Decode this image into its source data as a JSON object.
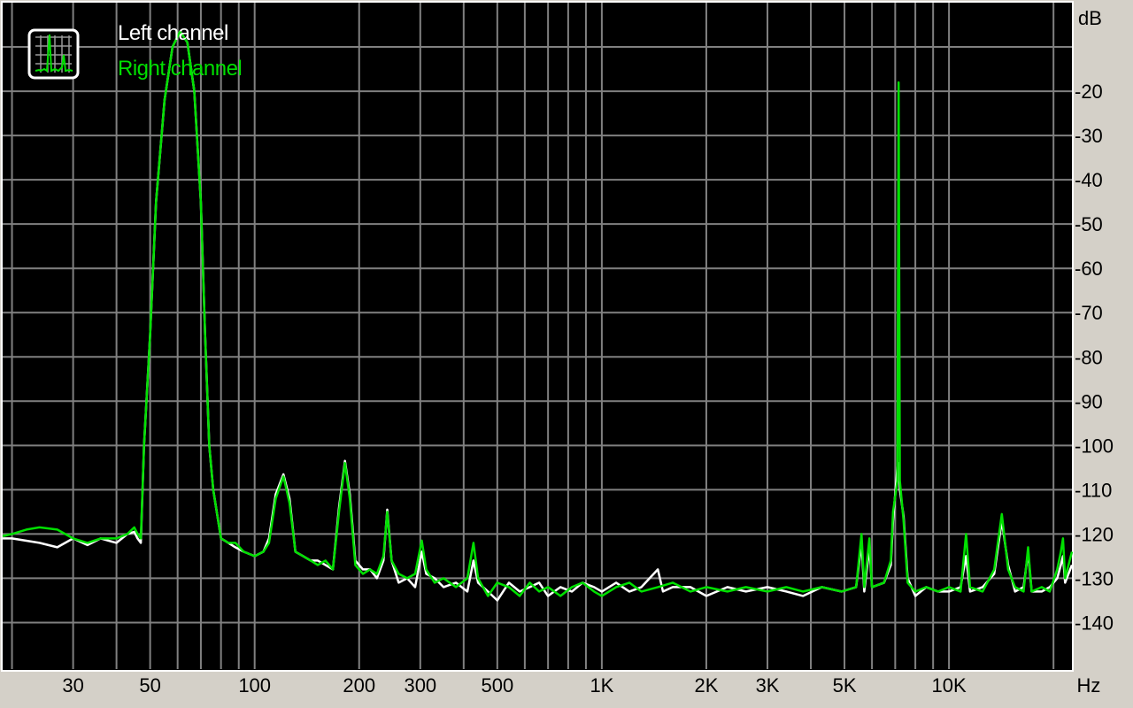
{
  "chart_data": {
    "type": "line",
    "xlabel": "Hz",
    "ylabel": "dB",
    "x_scale": "log",
    "xlim": [
      18.8,
      22600
    ],
    "ylim": [
      -150.5,
      0
    ],
    "grid": true,
    "legend_placement": "top-left",
    "x_ticks": [
      {
        "value": 30,
        "label": "30"
      },
      {
        "value": 50,
        "label": "50"
      },
      {
        "value": 100,
        "label": "100"
      },
      {
        "value": 200,
        "label": "200"
      },
      {
        "value": 300,
        "label": "300"
      },
      {
        "value": 500,
        "label": "500"
      },
      {
        "value": 1000,
        "label": "1K"
      },
      {
        "value": 2000,
        "label": "2K"
      },
      {
        "value": 3000,
        "label": "3K"
      },
      {
        "value": 5000,
        "label": "5K"
      },
      {
        "value": 10000,
        "label": "10K"
      }
    ],
    "y_ticks": [
      {
        "value": -20,
        "label": "-20"
      },
      {
        "value": -30,
        "label": "-30"
      },
      {
        "value": -40,
        "label": "-40"
      },
      {
        "value": -50,
        "label": "-50"
      },
      {
        "value": -60,
        "label": "-60"
      },
      {
        "value": -70,
        "label": "-70"
      },
      {
        "value": -80,
        "label": "-80"
      },
      {
        "value": -90,
        "label": "-90"
      },
      {
        "value": -100,
        "label": "-100"
      },
      {
        "value": -110,
        "label": "-110"
      },
      {
        "value": -120,
        "label": "-120"
      },
      {
        "value": -130,
        "label": "-130"
      },
      {
        "value": -140,
        "label": "-140"
      }
    ],
    "x_grid": [
      20,
      30,
      40,
      50,
      60,
      70,
      80,
      90,
      100,
      200,
      300,
      400,
      500,
      600,
      700,
      800,
      900,
      1000,
      2000,
      3000,
      4000,
      5000,
      6000,
      7000,
      8000,
      9000,
      10000,
      20000
    ],
    "y_grid": [
      -10,
      -20,
      -30,
      -40,
      -50,
      -60,
      -70,
      -80,
      -90,
      -100,
      -110,
      -120,
      -130,
      -140
    ],
    "series": [
      {
        "name": "Left channel",
        "color": "#ffffff",
        "points": [
          [
            18.8,
            -121
          ],
          [
            20,
            -121
          ],
          [
            24,
            -122
          ],
          [
            27,
            -123
          ],
          [
            30,
            -121
          ],
          [
            33,
            -122.5
          ],
          [
            36,
            -121
          ],
          [
            40,
            -122
          ],
          [
            43,
            -120
          ],
          [
            45,
            -119.5
          ],
          [
            46,
            -121
          ],
          [
            47,
            -122
          ],
          [
            48,
            -100
          ],
          [
            50,
            -75
          ],
          [
            52,
            -45
          ],
          [
            55,
            -22
          ],
          [
            58,
            -10
          ],
          [
            61,
            -6.5
          ],
          [
            64,
            -9
          ],
          [
            67,
            -20
          ],
          [
            70,
            -45
          ],
          [
            72,
            -75
          ],
          [
            74,
            -100
          ],
          [
            76,
            -110
          ],
          [
            80,
            -121
          ],
          [
            84,
            -122
          ],
          [
            88,
            -123
          ],
          [
            93,
            -124
          ],
          [
            100,
            -125
          ],
          [
            106,
            -124
          ],
          [
            110,
            -121
          ],
          [
            115,
            -111
          ],
          [
            121,
            -106.5
          ],
          [
            126,
            -112
          ],
          [
            131,
            -124
          ],
          [
            138,
            -125
          ],
          [
            145,
            -126
          ],
          [
            152,
            -126
          ],
          [
            160,
            -127
          ],
          [
            168,
            -128
          ],
          [
            175,
            -114
          ],
          [
            182,
            -103.5
          ],
          [
            188,
            -111
          ],
          [
            195,
            -126
          ],
          [
            205,
            -128
          ],
          [
            215,
            -128
          ],
          [
            225,
            -130
          ],
          [
            235,
            -126
          ],
          [
            241,
            -114.5
          ],
          [
            248,
            -126
          ],
          [
            260,
            -131
          ],
          [
            275,
            -130
          ],
          [
            290,
            -132
          ],
          [
            303,
            -124
          ],
          [
            312,
            -129
          ],
          [
            330,
            -130
          ],
          [
            350,
            -132
          ],
          [
            380,
            -131
          ],
          [
            410,
            -133
          ],
          [
            427,
            -126
          ],
          [
            440,
            -131
          ],
          [
            470,
            -133
          ],
          [
            500,
            -135
          ],
          [
            540,
            -131
          ],
          [
            580,
            -133
          ],
          [
            620,
            -132
          ],
          [
            660,
            -131
          ],
          [
            700,
            -134
          ],
          [
            760,
            -132
          ],
          [
            820,
            -133
          ],
          [
            880,
            -131
          ],
          [
            950,
            -132
          ],
          [
            1000,
            -133
          ],
          [
            1100,
            -131
          ],
          [
            1200,
            -133
          ],
          [
            1300,
            -132
          ],
          [
            1450,
            -128
          ],
          [
            1500,
            -133
          ],
          [
            1600,
            -132
          ],
          [
            1800,
            -132
          ],
          [
            2000,
            -134
          ],
          [
            2300,
            -132
          ],
          [
            2600,
            -133
          ],
          [
            3000,
            -132
          ],
          [
            3400,
            -133
          ],
          [
            3800,
            -134
          ],
          [
            4300,
            -132
          ],
          [
            4900,
            -133
          ],
          [
            5400,
            -132
          ],
          [
            5600,
            -122
          ],
          [
            5700,
            -133
          ],
          [
            5900,
            -123
          ],
          [
            6000,
            -132
          ],
          [
            6500,
            -131
          ],
          [
            6800,
            -127
          ],
          [
            6900,
            -117
          ],
          [
            7100,
            -105
          ],
          [
            7160,
            -104
          ],
          [
            7220,
            -110
          ],
          [
            7400,
            -116
          ],
          [
            7600,
            -130
          ],
          [
            8000,
            -134
          ],
          [
            8600,
            -132
          ],
          [
            9300,
            -133
          ],
          [
            10000,
            -133
          ],
          [
            10800,
            -132
          ],
          [
            11200,
            -125
          ],
          [
            11500,
            -133
          ],
          [
            12500,
            -132
          ],
          [
            13500,
            -129
          ],
          [
            14200,
            -117
          ],
          [
            14800,
            -127
          ],
          [
            15500,
            -133
          ],
          [
            16400,
            -132
          ],
          [
            16900,
            -124
          ],
          [
            17300,
            -133
          ],
          [
            18500,
            -133
          ],
          [
            19500,
            -132
          ],
          [
            20500,
            -130
          ],
          [
            21000,
            -127
          ],
          [
            21300,
            -125
          ],
          [
            21600,
            -131
          ],
          [
            22600,
            -127
          ]
        ]
      },
      {
        "name": "Right channel",
        "color": "#00e000",
        "points": [
          [
            18.8,
            -120.5
          ],
          [
            20,
            -120
          ],
          [
            22,
            -119
          ],
          [
            24,
            -118.5
          ],
          [
            27,
            -119
          ],
          [
            30,
            -121
          ],
          [
            33,
            -122
          ],
          [
            36,
            -121
          ],
          [
            40,
            -121
          ],
          [
            43,
            -120
          ],
          [
            45,
            -118.5
          ],
          [
            46,
            -120
          ],
          [
            47,
            -121
          ],
          [
            48,
            -100
          ],
          [
            50,
            -75
          ],
          [
            52,
            -45
          ],
          [
            55,
            -22
          ],
          [
            58,
            -10
          ],
          [
            61,
            -6.5
          ],
          [
            64,
            -9
          ],
          [
            67,
            -20
          ],
          [
            70,
            -45
          ],
          [
            72,
            -75
          ],
          [
            74,
            -100
          ],
          [
            76,
            -110
          ],
          [
            80,
            -121
          ],
          [
            84,
            -122
          ],
          [
            88,
            -122
          ],
          [
            93,
            -124
          ],
          [
            100,
            -125
          ],
          [
            106,
            -124
          ],
          [
            110,
            -122
          ],
          [
            115,
            -112
          ],
          [
            121,
            -107
          ],
          [
            126,
            -113
          ],
          [
            131,
            -124
          ],
          [
            138,
            -125
          ],
          [
            145,
            -126
          ],
          [
            152,
            -127
          ],
          [
            160,
            -126
          ],
          [
            168,
            -128
          ],
          [
            175,
            -115
          ],
          [
            182,
            -104
          ],
          [
            188,
            -112
          ],
          [
            195,
            -127
          ],
          [
            205,
            -129
          ],
          [
            215,
            -128
          ],
          [
            225,
            -129
          ],
          [
            235,
            -125
          ],
          [
            241,
            -115
          ],
          [
            248,
            -126
          ],
          [
            260,
            -129
          ],
          [
            275,
            -130
          ],
          [
            290,
            -129
          ],
          [
            303,
            -121.5
          ],
          [
            312,
            -128
          ],
          [
            330,
            -131
          ],
          [
            350,
            -130
          ],
          [
            380,
            -132
          ],
          [
            410,
            -130
          ],
          [
            427,
            -122
          ],
          [
            440,
            -130
          ],
          [
            470,
            -134
          ],
          [
            500,
            -131
          ],
          [
            540,
            -132
          ],
          [
            580,
            -134
          ],
          [
            620,
            -131
          ],
          [
            660,
            -133
          ],
          [
            700,
            -132
          ],
          [
            760,
            -134
          ],
          [
            820,
            -132
          ],
          [
            880,
            -131
          ],
          [
            950,
            -133
          ],
          [
            1000,
            -134
          ],
          [
            1100,
            -132
          ],
          [
            1200,
            -131
          ],
          [
            1300,
            -133
          ],
          [
            1450,
            -132
          ],
          [
            1600,
            -131
          ],
          [
            1800,
            -133
          ],
          [
            2000,
            -132
          ],
          [
            2300,
            -133
          ],
          [
            2600,
            -132
          ],
          [
            3000,
            -133
          ],
          [
            3400,
            -132
          ],
          [
            3800,
            -133
          ],
          [
            4300,
            -132
          ],
          [
            4900,
            -133
          ],
          [
            5400,
            -132
          ],
          [
            5600,
            -120
          ],
          [
            5700,
            -132
          ],
          [
            5900,
            -121
          ],
          [
            6000,
            -132
          ],
          [
            6500,
            -131
          ],
          [
            6800,
            -126
          ],
          [
            6900,
            -115
          ],
          [
            7100,
            -108
          ],
          [
            7160,
            -18
          ],
          [
            7220,
            -108
          ],
          [
            7400,
            -117
          ],
          [
            7600,
            -131
          ],
          [
            8000,
            -133
          ],
          [
            8600,
            -132
          ],
          [
            9300,
            -133
          ],
          [
            10000,
            -132
          ],
          [
            10800,
            -133
          ],
          [
            11200,
            -120
          ],
          [
            11500,
            -132
          ],
          [
            12500,
            -133
          ],
          [
            13500,
            -128
          ],
          [
            14200,
            -115.5
          ],
          [
            14800,
            -128
          ],
          [
            15500,
            -132
          ],
          [
            16400,
            -133
          ],
          [
            16900,
            -123
          ],
          [
            17300,
            -133
          ],
          [
            18500,
            -132
          ],
          [
            19500,
            -133
          ],
          [
            20500,
            -128
          ],
          [
            21000,
            -124
          ],
          [
            21300,
            -121
          ],
          [
            21600,
            -130
          ],
          [
            22600,
            -124
          ]
        ]
      }
    ]
  }
}
